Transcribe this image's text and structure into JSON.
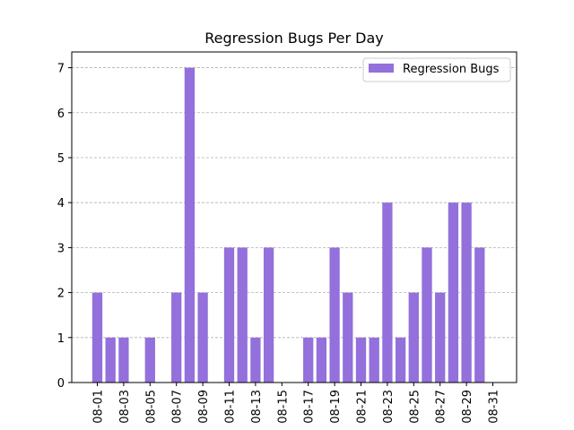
{
  "chart_data": {
    "type": "bar",
    "title": "Regression Bugs Per Day",
    "xlabel": "",
    "ylabel": "",
    "categories": [
      "08-01",
      "08-02",
      "08-03",
      "08-04",
      "08-05",
      "08-06",
      "08-07",
      "08-08",
      "08-09",
      "08-10",
      "08-11",
      "08-12",
      "08-13",
      "08-14",
      "08-15",
      "08-16",
      "08-17",
      "08-18",
      "08-19",
      "08-20",
      "08-21",
      "08-22",
      "08-23",
      "08-24",
      "08-25",
      "08-26",
      "08-27",
      "08-28",
      "08-29",
      "08-30",
      "08-31"
    ],
    "tick_labels": [
      "08-01",
      "08-03",
      "08-05",
      "08-07",
      "08-09",
      "08-11",
      "08-13",
      "08-15",
      "08-17",
      "08-19",
      "08-21",
      "08-23",
      "08-25",
      "08-27",
      "08-29",
      "08-31"
    ],
    "series": [
      {
        "name": "Regression Bugs",
        "color": "#9370db",
        "values": [
          2,
          1,
          1,
          0,
          1,
          0,
          2,
          7,
          2,
          0,
          3,
          3,
          1,
          3,
          0,
          0,
          1,
          1,
          3,
          2,
          1,
          1,
          4,
          1,
          2,
          3,
          2,
          4,
          4,
          3,
          0
        ]
      }
    ],
    "ylim": [
      0,
      7.35
    ],
    "yticks": [
      0,
      1,
      2,
      3,
      4,
      5,
      6,
      7
    ],
    "grid": "y-dashed",
    "legend_position": "upper right"
  }
}
